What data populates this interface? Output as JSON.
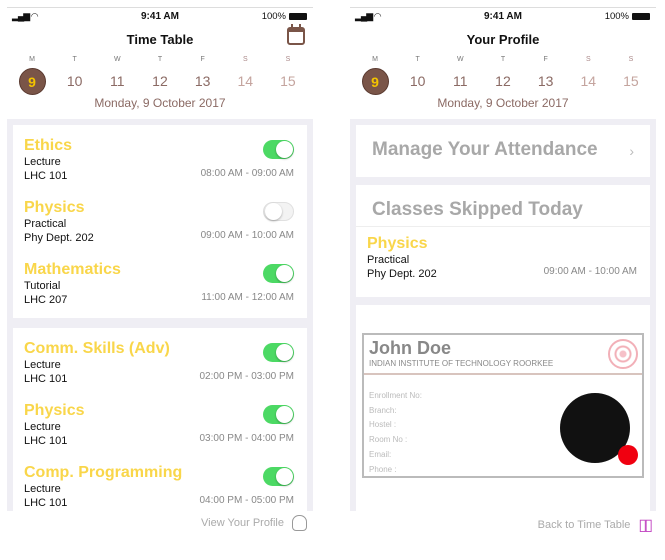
{
  "status": {
    "time": "9:41 AM",
    "battery": "100%"
  },
  "week": {
    "days": [
      {
        "wd": "M",
        "d": "9",
        "sel": true
      },
      {
        "wd": "T",
        "d": "10"
      },
      {
        "wd": "W",
        "d": "11"
      },
      {
        "wd": "T",
        "d": "12"
      },
      {
        "wd": "F",
        "d": "13"
      },
      {
        "wd": "S",
        "d": "14",
        "we": true
      },
      {
        "wd": "S",
        "d": "15",
        "we": true
      }
    ],
    "date": "Monday, 9 October 2017"
  },
  "timetable": {
    "title": "Time Table",
    "groups": [
      [
        {
          "name": "Ethics",
          "type": "Lecture",
          "room": "LHC 101",
          "time": "08:00 AM - 09:00 AM",
          "on": true
        },
        {
          "name": "Physics",
          "type": "Practical",
          "room": "Phy Dept. 202",
          "time": "09:00 AM - 10:00 AM",
          "on": false
        },
        {
          "name": "Mathematics",
          "type": "Tutorial",
          "room": "LHC 207",
          "time": "11:00 AM - 12:00 AM",
          "on": true
        }
      ],
      [
        {
          "name": "Comm. Skills (Adv)",
          "type": "Lecture",
          "room": "LHC 101",
          "time": "02:00 PM - 03:00 PM",
          "on": true
        },
        {
          "name": "Physics",
          "type": "Lecture",
          "room": "LHC 101",
          "time": "03:00 PM - 04:00 PM",
          "on": true
        },
        {
          "name": "Comp. Programming",
          "type": "Lecture",
          "room": "LHC 101",
          "time": "04:00 PM - 05:00 PM",
          "on": true
        }
      ]
    ],
    "footer": "View Your Profile"
  },
  "profile": {
    "title": "Your Profile",
    "manage": "Manage Your Attendance",
    "skipped_title": "Classes Skipped Today",
    "skipped": [
      {
        "name": "Physics",
        "type": "Practical",
        "room": "Phy Dept. 202",
        "time": "09:00 AM - 10:00 AM"
      }
    ],
    "id": {
      "name": "John Doe",
      "institute": "INDIAN INSTITUTE OF TECHNOLOGY ROORKEE",
      "fields": [
        "Enrollment No:",
        "Branch:",
        "Hostel :",
        "Room No :",
        "Email:",
        "Phone :"
      ]
    },
    "footer": "Back to Time Table"
  },
  "colors": {
    "accent": "#7a5548",
    "subject": "#f9d64a",
    "toggle_on": "#4cd964"
  }
}
